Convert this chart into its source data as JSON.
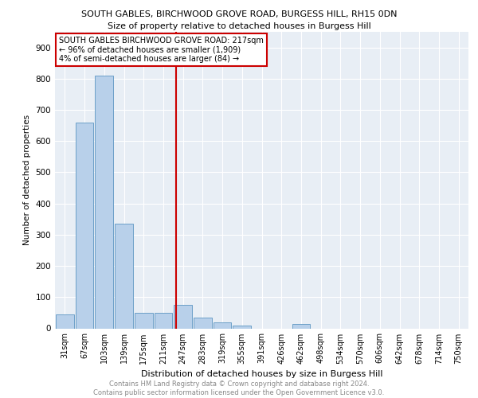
{
  "title1": "SOUTH GABLES, BIRCHWOOD GROVE ROAD, BURGESS HILL, RH15 0DN",
  "title2": "Size of property relative to detached houses in Burgess Hill",
  "xlabel": "Distribution of detached houses by size in Burgess Hill",
  "ylabel": "Number of detached properties",
  "footer": "Contains HM Land Registry data © Crown copyright and database right 2024.\nContains public sector information licensed under the Open Government Licence v3.0.",
  "bar_labels": [
    "31sqm",
    "67sqm",
    "103sqm",
    "139sqm",
    "175sqm",
    "211sqm",
    "247sqm",
    "283sqm",
    "319sqm",
    "355sqm",
    "391sqm",
    "426sqm",
    "462sqm",
    "498sqm",
    "534sqm",
    "570sqm",
    "606sqm",
    "642sqm",
    "678sqm",
    "714sqm",
    "750sqm"
  ],
  "bar_values": [
    45,
    660,
    810,
    335,
    50,
    50,
    75,
    35,
    20,
    10,
    0,
    0,
    15,
    0,
    0,
    0,
    0,
    0,
    0,
    0,
    0
  ],
  "bar_color": "#b8d0ea",
  "bar_edge_color": "#6ca0c8",
  "ylim": [
    0,
    950
  ],
  "yticks": [
    0,
    100,
    200,
    300,
    400,
    500,
    600,
    700,
    800,
    900
  ],
  "annotation_title": "SOUTH GABLES BIRCHWOOD GROVE ROAD: 217sqm",
  "annotation_line1": "← 96% of detached houses are smaller (1,909)",
  "annotation_line2": "4% of semi-detached houses are larger (84) →",
  "annotation_box_color": "#ffffff",
  "annotation_border_color": "#cc0000",
  "vline_color": "#cc0000",
  "plot_bg_color": "#e8eef5",
  "grid_color": "#ffffff",
  "vline_x_idx": 5.67
}
